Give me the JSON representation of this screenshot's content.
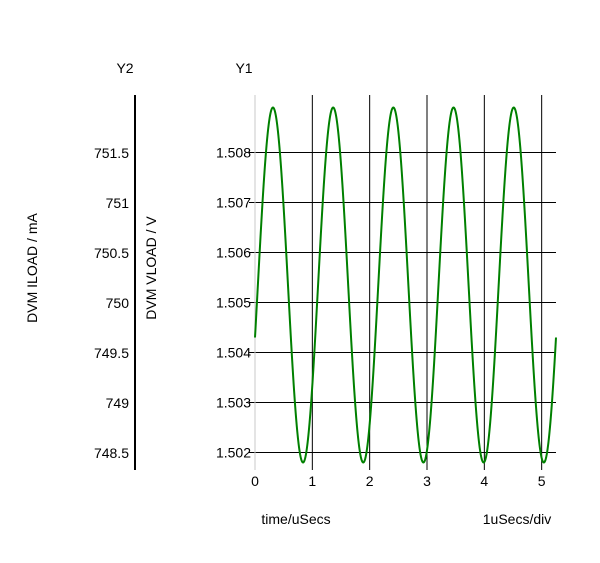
{
  "chart_data": {
    "type": "line",
    "axes": {
      "y2_header": "Y2",
      "y1_header": "Y1",
      "y2_label": "DVM ILOAD / mA",
      "y1_label": "DVM VLOAD / V",
      "x_label": "time/uSecs",
      "x_scale_label": "1uSecs/div",
      "y2_ticks": [
        "751.5",
        "751",
        "750.5",
        "750",
        "749.5",
        "749",
        "748.5"
      ],
      "y2_tick_values": [
        751.5,
        751,
        750.5,
        750,
        749.5,
        749,
        748.5
      ],
      "y1_ticks": [
        "1.508",
        "1.507",
        "1.506",
        "1.505",
        "1.504",
        "1.503",
        "1.502"
      ],
      "y1_tick_values": [
        1.508,
        1.507,
        1.506,
        1.505,
        1.504,
        1.503,
        1.502
      ],
      "x_ticks": [
        "0",
        "1",
        "2",
        "3",
        "4",
        "5"
      ],
      "x_tick_values": [
        0,
        1,
        2,
        3,
        4,
        5
      ],
      "xlim": [
        0,
        5.25
      ],
      "y1lim": [
        1.50165,
        1.50915
      ],
      "y2lim": [
        748.33,
        752.08
      ]
    },
    "series": [
      {
        "axis": "y1",
        "color": "#008000",
        "waveform": "sine",
        "offset": 1.50535,
        "amplitude": 0.00355,
        "period": 1.05,
        "start_value": 1.5043,
        "x_start": 0,
        "x_end": 5.25
      }
    ],
    "grid": true
  }
}
